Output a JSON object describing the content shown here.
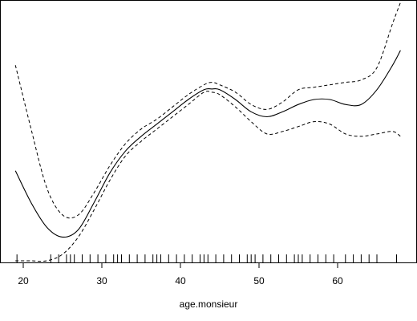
{
  "chart_data": {
    "type": "line",
    "title": "",
    "xlabel": "age.monsieur",
    "ylabel": "",
    "xlim": [
      18,
      70
    ],
    "ylim": [
      0,
      1
    ],
    "x_ticks": [
      20,
      30,
      40,
      50,
      60
    ],
    "grid": false,
    "series": [
      {
        "style": "solid",
        "x": [
          19,
          21,
          23,
          25,
          27,
          29,
          31,
          33,
          35,
          37,
          39,
          41,
          43,
          44,
          45,
          47,
          49,
          51,
          53,
          55,
          57,
          59,
          61,
          63,
          65,
          67,
          68
        ],
        "y": [
          0.37,
          0.24,
          0.14,
          0.1,
          0.13,
          0.24,
          0.36,
          0.45,
          0.51,
          0.56,
          0.61,
          0.66,
          0.7,
          0.703,
          0.7,
          0.66,
          0.61,
          0.59,
          0.61,
          0.64,
          0.66,
          0.66,
          0.64,
          0.64,
          0.7,
          0.8,
          0.86
        ]
      },
      {
        "style": "dashed",
        "x": [
          19,
          21,
          23,
          25,
          27,
          29,
          31,
          33,
          35,
          37,
          39,
          41,
          43,
          44,
          45,
          47,
          49,
          51,
          53,
          55,
          57,
          59,
          61,
          63,
          65,
          67,
          68
        ],
        "y": [
          0.8,
          0.54,
          0.3,
          0.19,
          0.19,
          0.28,
          0.39,
          0.48,
          0.54,
          0.58,
          0.63,
          0.68,
          0.72,
          0.73,
          0.72,
          0.69,
          0.64,
          0.62,
          0.65,
          0.7,
          0.71,
          0.72,
          0.73,
          0.74,
          0.79,
          0.97,
          1.14
        ]
      },
      {
        "style": "dashed",
        "x": [
          19,
          21,
          23,
          25,
          27,
          29,
          31,
          33,
          35,
          37,
          39,
          41,
          43,
          44,
          45,
          47,
          49,
          51,
          53,
          55,
          57,
          59,
          61,
          63,
          65,
          67,
          68
        ],
        "y": [
          -0.05,
          -0.02,
          0.0,
          0.03,
          0.1,
          0.21,
          0.33,
          0.43,
          0.49,
          0.54,
          0.59,
          0.64,
          0.69,
          0.69,
          0.68,
          0.63,
          0.57,
          0.52,
          0.53,
          0.55,
          0.57,
          0.56,
          0.52,
          0.51,
          0.52,
          0.53,
          0.51
        ]
      }
    ],
    "rug": [
      19.2,
      23.5,
      24.5,
      25.5,
      26,
      26.5,
      27.5,
      28.5,
      29.5,
      30.5,
      31.5,
      32,
      32.5,
      33.5,
      34.5,
      35.5,
      36.5,
      37,
      37.5,
      38.5,
      39.5,
      40.5,
      41.5,
      42.5,
      43,
      43.5,
      44.5,
      45.5,
      46.5,
      47.5,
      48.5,
      49,
      49.5,
      50.5,
      51.5,
      52.5,
      53.5,
      54.5,
      55,
      55.5,
      56.5,
      57.5,
      58.5,
      59.5,
      61,
      62,
      63,
      64,
      65,
      67.5
    ]
  }
}
